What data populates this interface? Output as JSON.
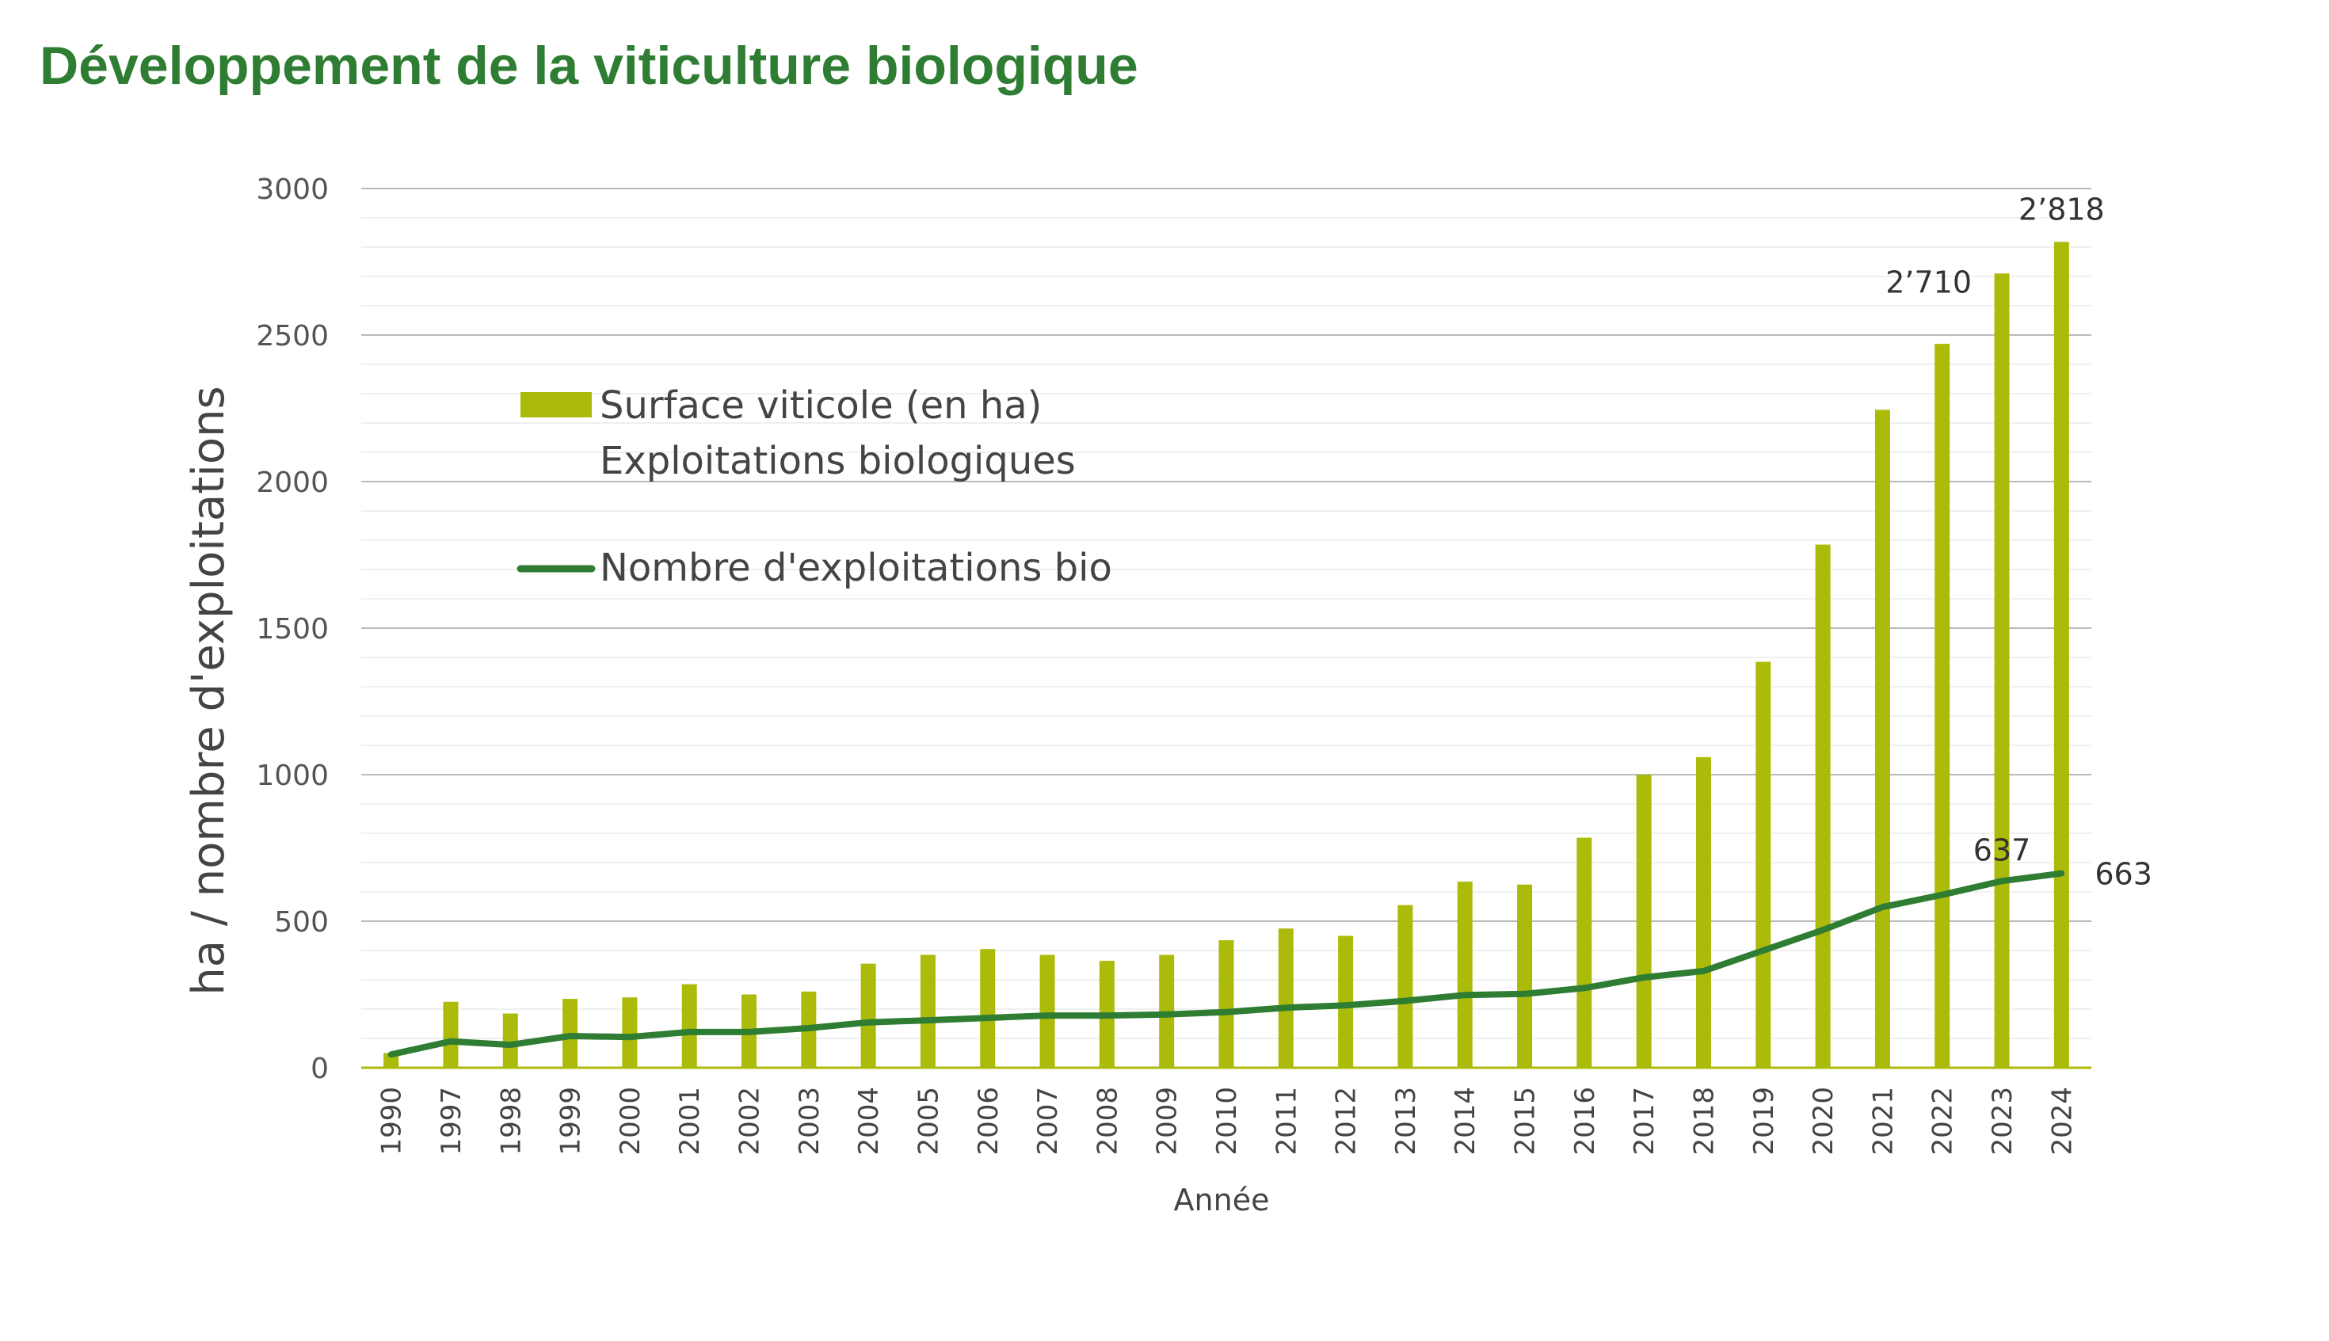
{
  "chart_data": {
    "type": "bar",
    "title": "Développement de la viticulture biologique",
    "xlabel": "Année",
    "ylabel": "ha / nombre d'exploitations",
    "ylim": [
      0,
      3000
    ],
    "yticks": [
      0,
      500,
      1000,
      1500,
      2000,
      2500,
      3000
    ],
    "grid": true,
    "legend_position": "top-left",
    "categories": [
      "1990",
      "1997",
      "1998",
      "1999",
      "2000",
      "2001",
      "2002",
      "2003",
      "2004",
      "2005",
      "2006",
      "2007",
      "2008",
      "2009",
      "2010",
      "2011",
      "2012",
      "2013",
      "2014",
      "2015",
      "2016",
      "2017",
      "2018",
      "2019",
      "2020",
      "2021",
      "2022",
      "2023",
      "2024"
    ],
    "series": [
      {
        "name": "Surface viticole (en ha) Exploitations biologiques",
        "name_lines": [
          "Surface viticole (en ha)",
          "Exploitations biologiques"
        ],
        "type": "bar",
        "color": "#acbb0a",
        "values": [
          50,
          225,
          185,
          235,
          240,
          285,
          250,
          260,
          355,
          385,
          405,
          385,
          365,
          385,
          435,
          475,
          450,
          555,
          635,
          625,
          785,
          1000,
          1060,
          1385,
          1785,
          2245,
          2470,
          2710,
          2818
        ],
        "data_labels": [
          {
            "category": "2023",
            "text": "2’710"
          },
          {
            "category": "2024",
            "text": "2’818"
          }
        ]
      },
      {
        "name": "Nombre d'exploitations bio",
        "type": "line",
        "color": "#2e7d32",
        "values": [
          45,
          90,
          78,
          108,
          105,
          122,
          122,
          135,
          155,
          162,
          170,
          178,
          178,
          182,
          190,
          205,
          213,
          228,
          248,
          252,
          272,
          308,
          330,
          400,
          470,
          548,
          590,
          637,
          663
        ],
        "data_labels": [
          {
            "category": "2023",
            "text": "637"
          },
          {
            "category": "2024",
            "text": "663"
          }
        ]
      }
    ]
  }
}
